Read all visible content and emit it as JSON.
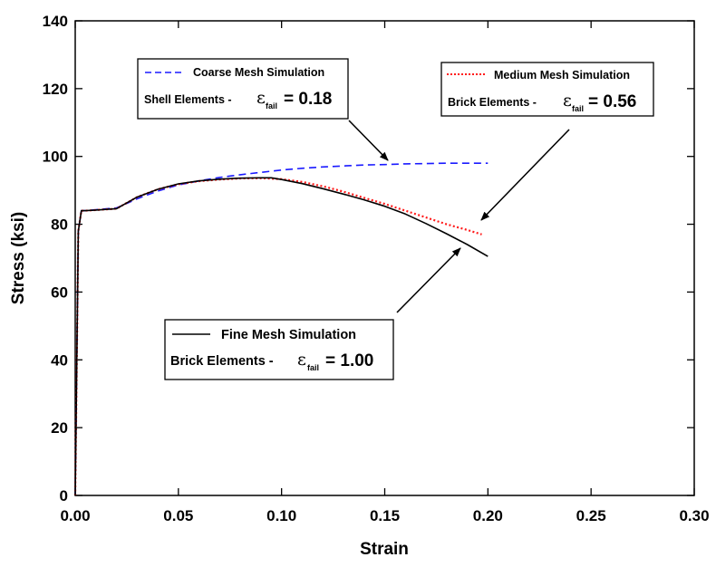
{
  "chart_data": {
    "type": "line",
    "xlabel": "Strain",
    "ylabel": "Stress  (ksi)",
    "xlim": [
      0,
      0.3
    ],
    "ylim": [
      0,
      140
    ],
    "xticks": [
      "0.00",
      "0.05",
      "0.10",
      "0.15",
      "0.20",
      "0.25",
      "0.30"
    ],
    "yticks": [
      "0",
      "20",
      "40",
      "60",
      "80",
      "100",
      "120",
      "140"
    ],
    "grid": false,
    "series": [
      {
        "name": "Coarse Mesh Simulation",
        "color": "#1a1aff",
        "style": "dashed",
        "x": [
          0,
          0.0015,
          0.003,
          0.005,
          0.01,
          0.02,
          0.03,
          0.04,
          0.05,
          0.06,
          0.07,
          0.08,
          0.09,
          0.1,
          0.11,
          0.12,
          0.13,
          0.14,
          0.15,
          0.16,
          0.17,
          0.18,
          0.19,
          0.2
        ],
        "y": [
          0,
          78,
          84,
          84,
          84.3,
          84.8,
          87.5,
          89.8,
          91.6,
          92.8,
          93.8,
          94.6,
          95.3,
          96.0,
          96.5,
          96.9,
          97.2,
          97.5,
          97.6,
          97.8,
          97.9,
          98.0,
          98.0,
          98.0
        ]
      },
      {
        "name": "Medium Mesh Simulation",
        "color": "#ff1a1a",
        "style": "dotted",
        "x": [
          0,
          0.0015,
          0.003,
          0.005,
          0.01,
          0.02,
          0.03,
          0.04,
          0.05,
          0.06,
          0.07,
          0.08,
          0.09,
          0.1,
          0.11,
          0.12,
          0.13,
          0.14,
          0.15,
          0.16,
          0.17,
          0.18,
          0.19,
          0.197
        ],
        "y": [
          0,
          78,
          84,
          84,
          84.2,
          84.6,
          88.0,
          90.3,
          91.8,
          92.7,
          93.2,
          93.5,
          93.6,
          93.3,
          92.5,
          91.2,
          89.6,
          87.8,
          86.0,
          84.0,
          82.0,
          80.0,
          78.3,
          77.0
        ]
      },
      {
        "name": "Fine Mesh Simulation",
        "color": "#000000",
        "style": "solid",
        "x": [
          0,
          0.0015,
          0.003,
          0.005,
          0.01,
          0.02,
          0.03,
          0.04,
          0.05,
          0.06,
          0.07,
          0.08,
          0.09,
          0.095,
          0.1,
          0.11,
          0.12,
          0.13,
          0.14,
          0.15,
          0.16,
          0.17,
          0.18,
          0.19,
          0.2
        ],
        "y": [
          0,
          78,
          84,
          84,
          84.2,
          84.6,
          88.0,
          90.3,
          91.9,
          92.8,
          93.3,
          93.6,
          93.7,
          93.7,
          93.2,
          92.0,
          90.5,
          88.9,
          87.2,
          85.3,
          83.0,
          80.2,
          77.2,
          74.0,
          70.5
        ]
      }
    ],
    "annotations": [
      {
        "series_line": "Coarse Mesh Simulation",
        "label": "Coarse Mesh Simulation",
        "prefix": "Shell Elements - ",
        "symbol": "ε",
        "subscript": "fail",
        "value": "= 0.18"
      },
      {
        "series_line": "Medium Mesh Simulation",
        "label": "Medium Mesh Simulation",
        "prefix": "Brick Elements - ",
        "symbol": "ε",
        "subscript": "fail",
        "value": "= 0.56"
      },
      {
        "series_line": "Fine Mesh Simulation",
        "label": "Fine Mesh Simulation",
        "prefix": "Brick Elements - ",
        "symbol": "ε",
        "subscript": "fail",
        "value": "= 1.00"
      }
    ]
  }
}
